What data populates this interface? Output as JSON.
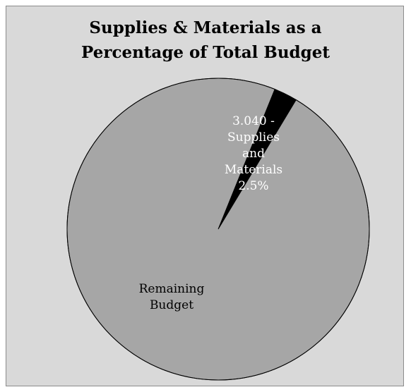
{
  "chart_data": {
    "type": "pie",
    "title_lines": [
      "Supplies & Materials as a",
      "Percentage of Total Budget"
    ],
    "slices": [
      {
        "name": "3.040 - Supplies and Materials",
        "percent": 2.5,
        "label_lines": [
          "3.040 -",
          "Supplies",
          "and",
          "Materials",
          "2.5%"
        ],
        "color": "#000000",
        "label_color": "#ffffff"
      },
      {
        "name": "Remaining Budget",
        "percent": 97.5,
        "label_lines": [
          "Remaining",
          "Budget"
        ],
        "color": "#a6a6a6",
        "label_color": "#000000"
      }
    ],
    "start_angle_deg": 22,
    "legend": "none",
    "background": "#d9d9d9",
    "plot_border": "#000000"
  }
}
